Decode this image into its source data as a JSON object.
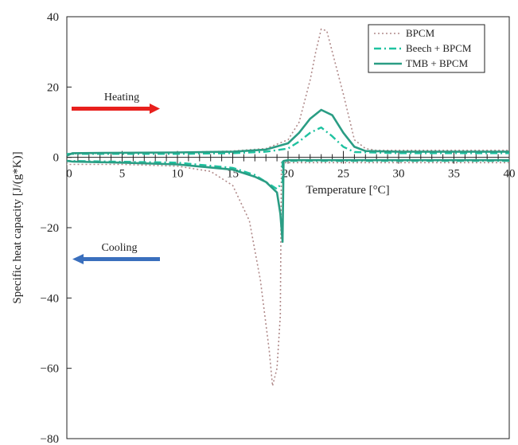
{
  "chart_data": {
    "type": "line",
    "xlabel": "Temperature [°C]",
    "ylabel": "Specific heat capacity [J/(g*K)]",
    "xlim": [
      0,
      40
    ],
    "ylim": [
      -80,
      40
    ],
    "x_ticks": [
      0,
      5,
      10,
      15,
      20,
      25,
      30,
      35,
      40
    ],
    "y_ticks": [
      -80,
      -60,
      -40,
      -20,
      0,
      20,
      40
    ],
    "x_tick_labels": [
      "0",
      "5",
      "10",
      "15",
      "20",
      "25",
      "30",
      "35",
      "40"
    ],
    "y_tick_labels": [
      "−80",
      "−60",
      "−40",
      "−20",
      "0",
      "20",
      "40"
    ],
    "grid": false,
    "legend_position": "top-right",
    "annotations": [
      {
        "text": "Heating",
        "arrow": "right",
        "color": "#e8201d"
      },
      {
        "text": "Cooling",
        "arrow": "left",
        "color": "#3a6fbd"
      }
    ],
    "series": [
      {
        "name": "BPCM",
        "color": "#b08a8a",
        "dash": "dotted",
        "heating": [
          [
            0,
            1.0
          ],
          [
            5,
            1.2
          ],
          [
            10,
            1.4
          ],
          [
            15,
            1.8
          ],
          [
            18,
            2.5
          ],
          [
            20,
            5
          ],
          [
            21,
            10
          ],
          [
            22,
            22
          ],
          [
            22.5,
            30
          ],
          [
            23,
            36.5
          ],
          [
            23.5,
            36
          ],
          [
            24,
            30
          ],
          [
            25,
            18
          ],
          [
            26,
            5
          ],
          [
            27,
            2.5
          ],
          [
            28,
            2
          ],
          [
            30,
            2
          ],
          [
            35,
            2
          ],
          [
            40,
            2
          ]
        ],
        "cooling": [
          [
            40,
            -1.5
          ],
          [
            30,
            -1.5
          ],
          [
            25,
            -1.5
          ],
          [
            20,
            -1.5
          ],
          [
            19.4,
            -1.5
          ],
          [
            19.3,
            -45
          ],
          [
            19.0,
            -60
          ],
          [
            18.6,
            -65
          ],
          [
            18.3,
            -55
          ],
          [
            17.5,
            -35
          ],
          [
            16.5,
            -18
          ],
          [
            15,
            -8
          ],
          [
            13,
            -4
          ],
          [
            10,
            -2.5
          ],
          [
            5,
            -2
          ],
          [
            0,
            -2
          ]
        ]
      },
      {
        "name": "Beech + BPCM",
        "color": "#1fc2a0",
        "dash": "dashdot",
        "heating": [
          [
            0,
            1.0
          ],
          [
            5,
            1.0
          ],
          [
            10,
            1.0
          ],
          [
            15,
            1.2
          ],
          [
            18,
            1.6
          ],
          [
            20,
            2.5
          ],
          [
            21,
            4.5
          ],
          [
            22,
            7
          ],
          [
            23,
            8.5
          ],
          [
            24,
            6
          ],
          [
            25,
            3
          ],
          [
            26,
            1.5
          ],
          [
            30,
            1.2
          ],
          [
            40,
            1.2
          ]
        ],
        "cooling": [
          [
            40,
            -1
          ],
          [
            30,
            -1
          ],
          [
            20,
            -1
          ],
          [
            19.5,
            -1
          ],
          [
            19.5,
            -7
          ],
          [
            19.0,
            -9
          ],
          [
            18,
            -7
          ],
          [
            17,
            -5
          ],
          [
            16,
            -4
          ],
          [
            15,
            -3
          ],
          [
            10,
            -1.5
          ],
          [
            0,
            -1
          ]
        ]
      },
      {
        "name": "TMB + BPCM",
        "color": "#2a9d84",
        "dash": "solid",
        "heating": [
          [
            0,
            0.5
          ],
          [
            0.5,
            1.2
          ],
          [
            5,
            1.3
          ],
          [
            10,
            1.4
          ],
          [
            15,
            1.6
          ],
          [
            18,
            2.2
          ],
          [
            20,
            4
          ],
          [
            21,
            7
          ],
          [
            22,
            11
          ],
          [
            23,
            13.5
          ],
          [
            24,
            12
          ],
          [
            25,
            7
          ],
          [
            26,
            3
          ],
          [
            27,
            1.8
          ],
          [
            30,
            1.6
          ],
          [
            40,
            1.6
          ]
        ],
        "cooling": [
          [
            40,
            -0.8
          ],
          [
            30,
            -0.8
          ],
          [
            20,
            -0.8
          ],
          [
            19.6,
            -1
          ],
          [
            19.5,
            -24
          ],
          [
            19.3,
            -16
          ],
          [
            19.0,
            -10
          ],
          [
            18,
            -7
          ],
          [
            17,
            -5.5
          ],
          [
            16,
            -4.5
          ],
          [
            15,
            -3.5
          ],
          [
            10,
            -2
          ],
          [
            5,
            -1.5
          ],
          [
            0.5,
            -1.2
          ],
          [
            0,
            -1
          ]
        ]
      }
    ]
  }
}
